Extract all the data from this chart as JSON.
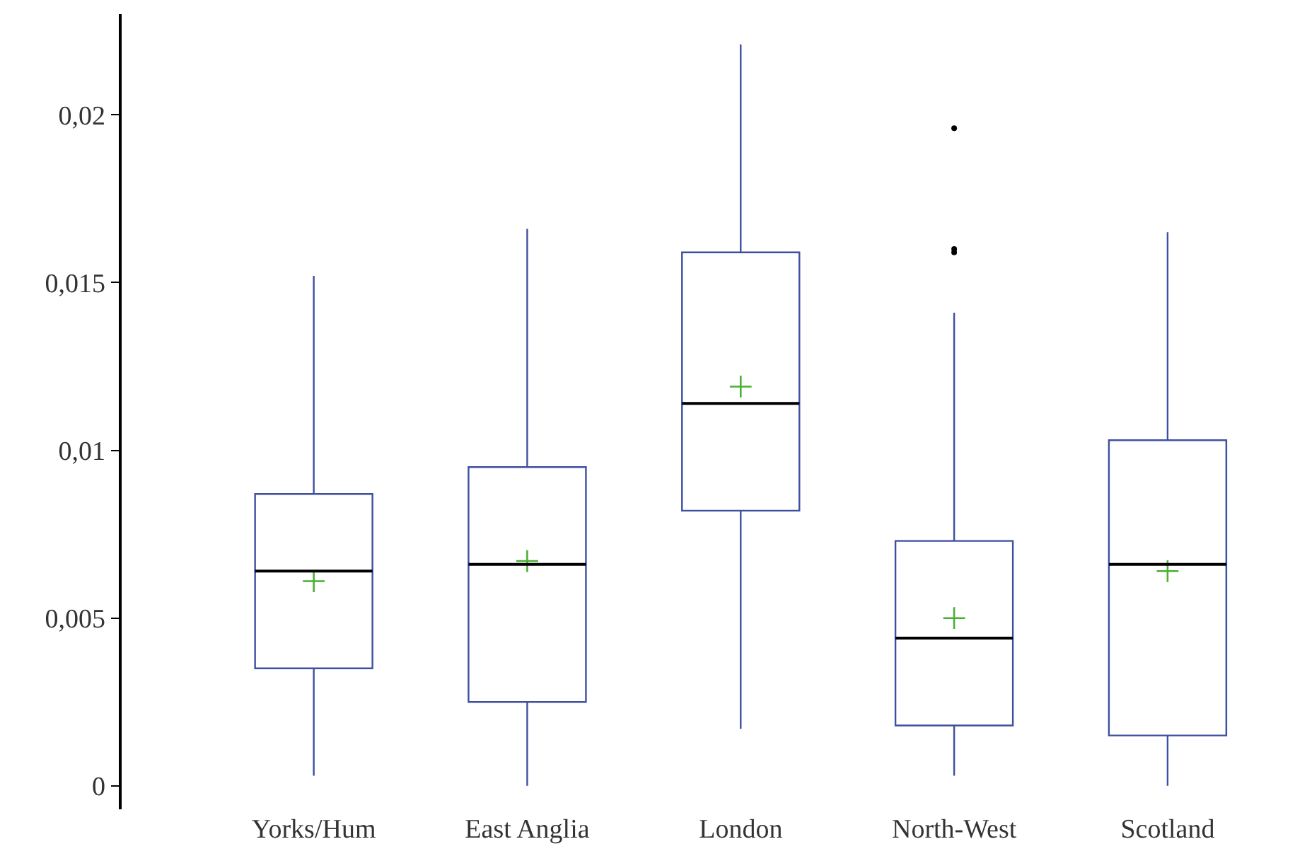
{
  "chart_data": {
    "type": "box",
    "categories": [
      "Yorks/Hum",
      "East Anglia",
      "London",
      "North-West",
      "Scotland"
    ],
    "boxes": [
      {
        "low": 0.0003,
        "q1": 0.0035,
        "median": 0.0064,
        "q3": 0.0087,
        "high": 0.0152,
        "mean": 0.0061
      },
      {
        "low": 0,
        "q1": 0.0025,
        "median": 0.0066,
        "q3": 0.0095,
        "high": 0.0166,
        "mean": 0.0067
      },
      {
        "low": 0.0017,
        "q1": 0.0082,
        "median": 0.0114,
        "q3": 0.0159,
        "high": 0.0221,
        "mean": 0.0119
      },
      {
        "low": 0.0003,
        "q1": 0.0018,
        "median": 0.0044,
        "q3": 0.0073,
        "high": 0.0141,
        "mean": 0.005,
        "outliers": [
          0.0196,
          0.016,
          0.0159
        ]
      },
      {
        "low": 0,
        "q1": 0.0015,
        "median": 0.0066,
        "q3": 0.0103,
        "high": 0.0165,
        "mean": 0.0064
      }
    ],
    "color": "#3f4fa0",
    "ylim": [
      -0.0007,
      0.023
    ],
    "yticks": [
      {
        "value": 0,
        "label": "0"
      },
      {
        "value": 0.005,
        "label": "0,005"
      },
      {
        "value": 0.01,
        "label": "0,01"
      },
      {
        "value": 0.015,
        "label": "0,015"
      },
      {
        "value": 0.02,
        "label": "0,02"
      }
    ],
    "grid": false
  }
}
